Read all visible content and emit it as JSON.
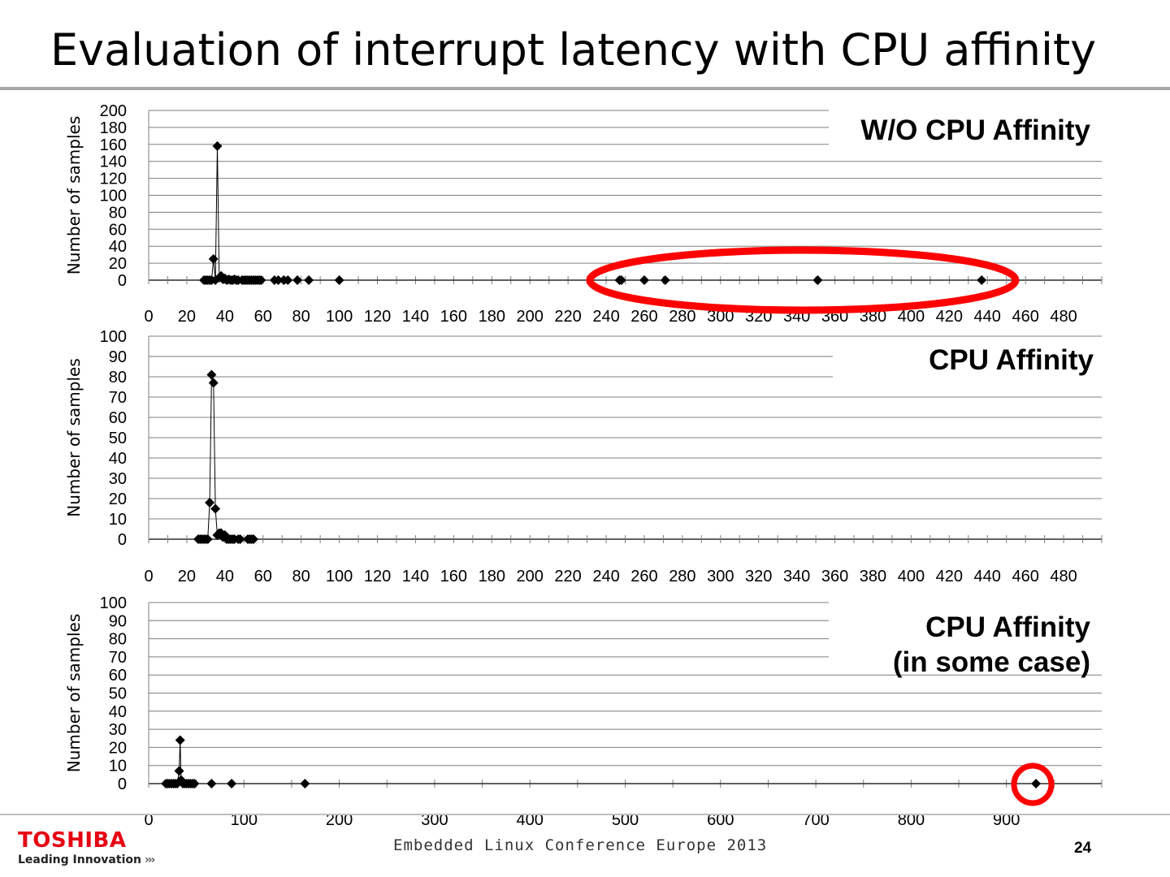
{
  "slide": {
    "title": "Evaluation of interrupt latency with CPU affinity"
  },
  "footer": {
    "brand_name": "TOSHIBA",
    "brand_tagline": "Leading Innovation",
    "brand_chevrons": "›››",
    "conference": "Embedded Linux Conference Europe 2013",
    "page_number": "24"
  },
  "colors": {
    "marker": "#000000",
    "line": "#000000",
    "grid": "#7f7f7f",
    "highlight": "#ff0000",
    "brand": "#e60012"
  },
  "chart_data": [
    {
      "type": "scatter",
      "title": "W/O CPU Affinity",
      "ylabel": "Number of samples",
      "xlabel": "",
      "xlim": [
        0,
        500
      ],
      "ylim": [
        0,
        200
      ],
      "xticks": [
        0,
        20,
        40,
        60,
        80,
        100,
        120,
        140,
        160,
        180,
        200,
        220,
        240,
        260,
        280,
        300,
        320,
        340,
        360,
        380,
        400,
        420,
        440,
        460,
        480
      ],
      "yticks": [
        0,
        20,
        40,
        60,
        80,
        100,
        120,
        140,
        160,
        180,
        200
      ],
      "grid": true,
      "lines_connect_points": true,
      "points": [
        [
          29,
          0
        ],
        [
          30,
          0
        ],
        [
          31,
          0
        ],
        [
          32,
          0
        ],
        [
          33,
          0
        ],
        [
          34,
          25
        ],
        [
          35,
          0
        ],
        [
          36,
          158
        ],
        [
          37,
          3
        ],
        [
          38,
          5
        ],
        [
          39,
          1
        ],
        [
          40,
          2
        ],
        [
          41,
          0
        ],
        [
          42,
          1
        ],
        [
          43,
          0
        ],
        [
          44,
          0
        ],
        [
          45,
          1
        ],
        [
          46,
          0
        ],
        [
          47,
          0
        ],
        [
          49,
          0
        ],
        [
          50,
          0
        ],
        [
          51,
          0
        ],
        [
          52,
          0
        ],
        [
          53,
          0
        ],
        [
          54,
          0
        ],
        [
          55,
          0
        ],
        [
          56,
          0
        ],
        [
          57,
          0
        ],
        [
          58,
          0
        ],
        [
          59,
          0
        ],
        [
          66,
          0
        ],
        [
          68,
          0
        ],
        [
          71,
          0
        ],
        [
          73,
          0
        ],
        [
          78,
          0
        ],
        [
          84,
          0
        ],
        [
          100,
          0
        ],
        [
          247,
          0
        ],
        [
          248,
          0
        ],
        [
          260,
          0
        ],
        [
          271,
          0
        ],
        [
          351,
          0
        ],
        [
          437,
          0
        ]
      ],
      "annotation": "red ellipse around the outliers between 240 and 440"
    },
    {
      "type": "scatter",
      "title": "CPU Affinity",
      "ylabel": "Number of samples",
      "xlabel": "",
      "xlim": [
        0,
        500
      ],
      "ylim": [
        0,
        100
      ],
      "xticks": [
        0,
        20,
        40,
        60,
        80,
        100,
        120,
        140,
        160,
        180,
        200,
        220,
        240,
        260,
        280,
        300,
        320,
        340,
        360,
        380,
        400,
        420,
        440,
        460,
        480
      ],
      "yticks": [
        0,
        10,
        20,
        30,
        40,
        50,
        60,
        70,
        80,
        90,
        100
      ],
      "grid": true,
      "lines_connect_points": true,
      "points": [
        [
          26,
          0
        ],
        [
          27,
          0
        ],
        [
          28,
          0
        ],
        [
          29,
          0
        ],
        [
          30,
          0
        ],
        [
          31,
          0
        ],
        [
          32,
          18
        ],
        [
          33,
          81
        ],
        [
          34,
          77
        ],
        [
          35,
          15
        ],
        [
          36,
          2
        ],
        [
          37,
          3
        ],
        [
          38,
          3
        ],
        [
          39,
          1
        ],
        [
          40,
          2
        ],
        [
          41,
          0
        ],
        [
          42,
          0
        ],
        [
          43,
          0
        ],
        [
          44,
          0
        ],
        [
          45,
          0
        ],
        [
          47,
          0
        ],
        [
          48,
          0
        ],
        [
          52,
          0
        ],
        [
          53,
          0
        ],
        [
          54,
          0
        ],
        [
          55,
          0
        ]
      ]
    },
    {
      "type": "scatter",
      "title": "CPU Affinity\n(in some case)",
      "ylabel": "Number of samples",
      "xlabel": "",
      "xlim": [
        0,
        1000
      ],
      "ylim": [
        0,
        100
      ],
      "xticks": [
        0,
        100,
        200,
        300,
        400,
        500,
        600,
        700,
        800,
        900
      ],
      "yticks": [
        0,
        10,
        20,
        30,
        40,
        50,
        60,
        70,
        80,
        90,
        100
      ],
      "grid": true,
      "lines_connect_points": true,
      "points": [
        [
          18,
          0
        ],
        [
          20,
          0
        ],
        [
          22,
          0
        ],
        [
          24,
          0
        ],
        [
          26,
          0
        ],
        [
          28,
          0
        ],
        [
          30,
          0
        ],
        [
          32,
          7
        ],
        [
          33,
          24
        ],
        [
          34,
          2
        ],
        [
          36,
          0
        ],
        [
          38,
          0
        ],
        [
          40,
          0
        ],
        [
          42,
          0
        ],
        [
          44,
          0
        ],
        [
          46,
          0
        ],
        [
          48,
          0
        ],
        [
          66,
          0
        ],
        [
          87,
          0
        ],
        [
          164,
          0
        ],
        [
          931,
          0
        ]
      ],
      "annotation": "red circle around the outlier near 930"
    }
  ]
}
